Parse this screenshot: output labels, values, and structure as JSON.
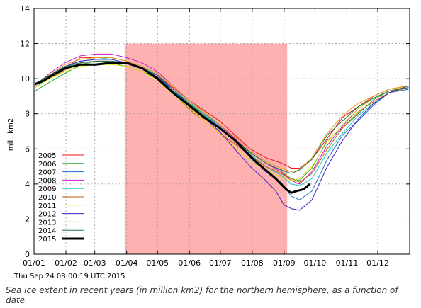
{
  "chart_data": {
    "type": "line",
    "ylabel": "mill. km2",
    "xlabel": "",
    "ylim": [
      0,
      14
    ],
    "y_ticks": [
      "0",
      "2",
      "4",
      "6",
      "8",
      "10",
      "12",
      "14"
    ],
    "x_ticks": [
      "01/01",
      "01/02",
      "01/03",
      "01/04",
      "01/05",
      "01/06",
      "01/07",
      "01/08",
      "01/09",
      "01/10",
      "01/11",
      "01/12"
    ],
    "grid": true,
    "legend_position": "bottom-left",
    "highlight_band": {
      "from_day": 88,
      "to_day": 246,
      "color": "#ffb0b0"
    },
    "series": [
      {
        "name": "2005",
        "color": "#e8141e",
        "width": 1,
        "values": [
          [
            1,
            9.6
          ],
          [
            15,
            10.1
          ],
          [
            30,
            10.6
          ],
          [
            45,
            11.2
          ],
          [
            60,
            11.2
          ],
          [
            75,
            11.2
          ],
          [
            90,
            11.0
          ],
          [
            105,
            10.6
          ],
          [
            120,
            10.2
          ],
          [
            135,
            9.5
          ],
          [
            150,
            8.8
          ],
          [
            165,
            8.2
          ],
          [
            180,
            7.6
          ],
          [
            195,
            6.8
          ],
          [
            210,
            6.0
          ],
          [
            225,
            5.5
          ],
          [
            240,
            5.2
          ],
          [
            250,
            4.9
          ],
          [
            258,
            4.9
          ],
          [
            270,
            5.4
          ],
          [
            285,
            6.6
          ],
          [
            300,
            7.8
          ],
          [
            315,
            8.4
          ],
          [
            330,
            9.0
          ],
          [
            345,
            9.4
          ],
          [
            364,
            9.6
          ]
        ]
      },
      {
        "name": "2006",
        "color": "#2aa52a",
        "width": 1,
        "values": [
          [
            1,
            9.3
          ],
          [
            15,
            9.8
          ],
          [
            30,
            10.3
          ],
          [
            45,
            10.8
          ],
          [
            60,
            11.0
          ],
          [
            75,
            10.9
          ],
          [
            90,
            10.7
          ],
          [
            105,
            10.4
          ],
          [
            120,
            10.0
          ],
          [
            135,
            9.3
          ],
          [
            150,
            8.6
          ],
          [
            165,
            8.0
          ],
          [
            180,
            7.4
          ],
          [
            195,
            6.6
          ],
          [
            210,
            5.8
          ],
          [
            225,
            5.2
          ],
          [
            240,
            4.7
          ],
          [
            250,
            4.3
          ],
          [
            258,
            4.2
          ],
          [
            270,
            4.9
          ],
          [
            285,
            6.5
          ],
          [
            300,
            7.2
          ],
          [
            315,
            8.0
          ],
          [
            330,
            8.8
          ],
          [
            345,
            9.3
          ],
          [
            364,
            9.6
          ]
        ]
      },
      {
        "name": "2007",
        "color": "#1e6fc9",
        "width": 1,
        "values": [
          [
            1,
            9.7
          ],
          [
            15,
            10.0
          ],
          [
            30,
            10.5
          ],
          [
            45,
            10.9
          ],
          [
            60,
            11.0
          ],
          [
            75,
            11.0
          ],
          [
            90,
            10.9
          ],
          [
            105,
            10.6
          ],
          [
            120,
            10.1
          ],
          [
            135,
            9.3
          ],
          [
            150,
            8.6
          ],
          [
            165,
            7.9
          ],
          [
            180,
            7.3
          ],
          [
            195,
            6.5
          ],
          [
            210,
            5.5
          ],
          [
            225,
            4.7
          ],
          [
            240,
            4.1
          ],
          [
            250,
            3.3
          ],
          [
            258,
            3.1
          ],
          [
            270,
            3.6
          ],
          [
            285,
            5.4
          ],
          [
            300,
            6.8
          ],
          [
            315,
            7.6
          ],
          [
            330,
            8.5
          ],
          [
            345,
            9.2
          ],
          [
            364,
            9.4
          ]
        ]
      },
      {
        "name": "2008",
        "color": "#c51ec5",
        "width": 1,
        "values": [
          [
            1,
            9.6
          ],
          [
            15,
            10.3
          ],
          [
            30,
            10.9
          ],
          [
            45,
            11.3
          ],
          [
            60,
            11.4
          ],
          [
            75,
            11.4
          ],
          [
            90,
            11.2
          ],
          [
            105,
            10.9
          ],
          [
            120,
            10.4
          ],
          [
            135,
            9.6
          ],
          [
            150,
            8.8
          ],
          [
            165,
            8.1
          ],
          [
            180,
            7.4
          ],
          [
            195,
            6.6
          ],
          [
            210,
            5.8
          ],
          [
            225,
            5.2
          ],
          [
            240,
            4.7
          ],
          [
            250,
            4.2
          ],
          [
            258,
            4.0
          ],
          [
            270,
            4.7
          ],
          [
            285,
            6.2
          ],
          [
            300,
            7.3
          ],
          [
            315,
            8.3
          ],
          [
            330,
            8.9
          ],
          [
            345,
            9.3
          ],
          [
            364,
            9.6
          ]
        ]
      },
      {
        "name": "2009",
        "color": "#17c5c5",
        "width": 1,
        "values": [
          [
            1,
            9.5
          ],
          [
            15,
            10.1
          ],
          [
            30,
            10.6
          ],
          [
            45,
            11.0
          ],
          [
            60,
            11.1
          ],
          [
            75,
            11.2
          ],
          [
            90,
            11.0
          ],
          [
            105,
            10.7
          ],
          [
            120,
            10.2
          ],
          [
            135,
            9.4
          ],
          [
            150,
            8.7
          ],
          [
            165,
            8.0
          ],
          [
            180,
            7.3
          ],
          [
            195,
            6.5
          ],
          [
            210,
            5.7
          ],
          [
            225,
            5.0
          ],
          [
            240,
            4.5
          ],
          [
            250,
            4.0
          ],
          [
            258,
            3.9
          ],
          [
            270,
            4.3
          ],
          [
            285,
            5.8
          ],
          [
            300,
            6.9
          ],
          [
            315,
            7.9
          ],
          [
            330,
            8.6
          ],
          [
            345,
            9.2
          ],
          [
            364,
            9.5
          ]
        ]
      },
      {
        "name": "2010",
        "color": "#c05a0a",
        "width": 1,
        "values": [
          [
            1,
            9.5
          ],
          [
            15,
            10.0
          ],
          [
            30,
            10.5
          ],
          [
            45,
            10.9
          ],
          [
            60,
            11.0
          ],
          [
            75,
            11.0
          ],
          [
            90,
            10.9
          ],
          [
            105,
            10.6
          ],
          [
            120,
            10.1
          ],
          [
            135,
            9.2
          ],
          [
            150,
            8.3
          ],
          [
            165,
            7.6
          ],
          [
            180,
            6.9
          ],
          [
            195,
            6.3
          ],
          [
            210,
            5.6
          ],
          [
            225,
            5.0
          ],
          [
            240,
            4.6
          ],
          [
            250,
            4.3
          ],
          [
            258,
            4.1
          ],
          [
            270,
            4.6
          ],
          [
            285,
            6.0
          ],
          [
            300,
            7.2
          ],
          [
            315,
            8.1
          ],
          [
            330,
            8.7
          ],
          [
            345,
            9.2
          ],
          [
            364,
            9.5
          ]
        ]
      },
      {
        "name": "2011",
        "color": "#e2e21e",
        "width": 1,
        "values": [
          [
            1,
            9.5
          ],
          [
            15,
            10.0
          ],
          [
            30,
            10.4
          ],
          [
            45,
            10.7
          ],
          [
            60,
            10.8
          ],
          [
            75,
            10.8
          ],
          [
            90,
            10.7
          ],
          [
            105,
            10.4
          ],
          [
            120,
            9.9
          ],
          [
            135,
            9.1
          ],
          [
            150,
            8.4
          ],
          [
            165,
            7.6
          ],
          [
            180,
            6.9
          ],
          [
            195,
            6.1
          ],
          [
            210,
            5.3
          ],
          [
            225,
            4.8
          ],
          [
            240,
            4.4
          ],
          [
            250,
            4.2
          ],
          [
            258,
            4.3
          ],
          [
            270,
            5.0
          ],
          [
            285,
            6.4
          ],
          [
            300,
            7.4
          ],
          [
            315,
            8.3
          ],
          [
            330,
            8.9
          ],
          [
            345,
            9.3
          ],
          [
            364,
            9.6
          ]
        ]
      },
      {
        "name": "2012",
        "color": "#3a1ec5",
        "width": 1,
        "values": [
          [
            1,
            9.7
          ],
          [
            15,
            10.2
          ],
          [
            30,
            10.7
          ],
          [
            45,
            11.0
          ],
          [
            60,
            11.1
          ],
          [
            75,
            11.1
          ],
          [
            90,
            10.9
          ],
          [
            105,
            10.6
          ],
          [
            120,
            10.1
          ],
          [
            135,
            9.4
          ],
          [
            150,
            8.6
          ],
          [
            165,
            7.8
          ],
          [
            180,
            7.0
          ],
          [
            195,
            6.0
          ],
          [
            210,
            5.0
          ],
          [
            225,
            4.2
          ],
          [
            235,
            3.6
          ],
          [
            243,
            2.8
          ],
          [
            250,
            2.6
          ],
          [
            258,
            2.5
          ],
          [
            270,
            3.1
          ],
          [
            285,
            5.0
          ],
          [
            300,
            6.5
          ],
          [
            315,
            7.7
          ],
          [
            330,
            8.6
          ],
          [
            345,
            9.2
          ],
          [
            364,
            9.6
          ]
        ]
      },
      {
        "name": "2013",
        "color": "#e8a01e",
        "width": 1,
        "values": [
          [
            1,
            9.6
          ],
          [
            15,
            10.2
          ],
          [
            30,
            10.8
          ],
          [
            45,
            11.1
          ],
          [
            60,
            11.2
          ],
          [
            75,
            11.2
          ],
          [
            90,
            11.0
          ],
          [
            105,
            10.7
          ],
          [
            120,
            10.3
          ],
          [
            135,
            9.6
          ],
          [
            150,
            8.8
          ],
          [
            165,
            8.1
          ],
          [
            180,
            7.4
          ],
          [
            195,
            6.7
          ],
          [
            210,
            5.9
          ],
          [
            225,
            5.3
          ],
          [
            240,
            4.9
          ],
          [
            250,
            4.7
          ],
          [
            258,
            4.8
          ],
          [
            270,
            5.5
          ],
          [
            285,
            6.9
          ],
          [
            300,
            7.9
          ],
          [
            315,
            8.6
          ],
          [
            330,
            9.0
          ],
          [
            345,
            9.4
          ],
          [
            364,
            9.6
          ]
        ]
      },
      {
        "name": "2014",
        "color": "#1a7a4a",
        "width": 1,
        "values": [
          [
            1,
            9.7
          ],
          [
            15,
            10.2
          ],
          [
            30,
            10.7
          ],
          [
            45,
            10.9
          ],
          [
            60,
            11.0
          ],
          [
            75,
            11.0
          ],
          [
            90,
            10.9
          ],
          [
            105,
            10.6
          ],
          [
            120,
            10.2
          ],
          [
            135,
            9.4
          ],
          [
            150,
            8.6
          ],
          [
            165,
            7.9
          ],
          [
            180,
            7.2
          ],
          [
            195,
            6.5
          ],
          [
            210,
            5.8
          ],
          [
            225,
            5.2
          ],
          [
            240,
            4.8
          ],
          [
            250,
            4.6
          ],
          [
            258,
            4.8
          ],
          [
            270,
            5.4
          ],
          [
            285,
            6.8
          ],
          [
            300,
            7.6
          ],
          [
            315,
            8.4
          ],
          [
            330,
            8.9
          ],
          [
            345,
            9.3
          ],
          [
            364,
            9.5
          ]
        ]
      },
      {
        "name": "2015",
        "color": "#000000",
        "width": 3,
        "values": [
          [
            1,
            9.7
          ],
          [
            10,
            9.9
          ],
          [
            15,
            10.1
          ],
          [
            30,
            10.6
          ],
          [
            45,
            10.8
          ],
          [
            60,
            10.8
          ],
          [
            75,
            10.9
          ],
          [
            90,
            10.9
          ],
          [
            105,
            10.6
          ],
          [
            120,
            10.0
          ],
          [
            135,
            9.2
          ],
          [
            150,
            8.5
          ],
          [
            165,
            7.8
          ],
          [
            180,
            7.2
          ],
          [
            195,
            6.5
          ],
          [
            205,
            5.9
          ],
          [
            215,
            5.3
          ],
          [
            225,
            4.8
          ],
          [
            235,
            4.3
          ],
          [
            245,
            3.7
          ],
          [
            250,
            3.5
          ],
          [
            255,
            3.6
          ],
          [
            262,
            3.7
          ],
          [
            268,
            4.0
          ]
        ]
      }
    ]
  },
  "footer": {
    "timestamp": "Thu Sep 24 08:00:19 UTC 2015",
    "caption": "Sea ice extent in recent years (in million km2) for the northern hemisphere, as a function of date."
  }
}
